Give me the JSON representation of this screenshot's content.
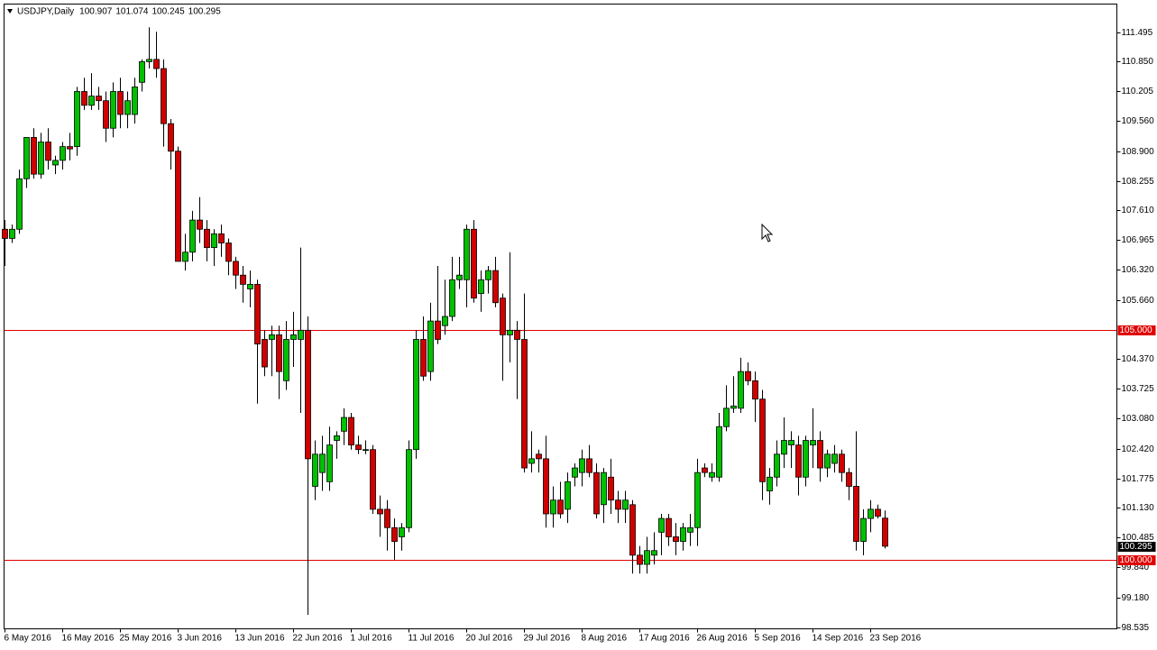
{
  "chart_data": {
    "type": "candlestick",
    "symbol": "USDJPY,Daily",
    "categories": [
      "6 May 2016",
      null,
      null,
      null,
      null,
      null,
      null,
      null,
      "16 May 2016",
      null,
      null,
      null,
      null,
      null,
      null,
      null,
      "25 May 2016",
      null,
      null,
      null,
      null,
      null,
      null,
      null,
      "3 Jun 2016",
      null,
      null,
      null,
      null,
      null,
      null,
      null,
      "13 Jun 2016",
      null,
      null,
      null,
      null,
      null,
      null,
      null,
      "22 Jun 2016",
      null,
      null,
      null,
      null,
      null,
      null,
      null,
      "1 Jul 2016",
      null,
      null,
      null,
      null,
      null,
      null,
      null,
      "11 Jul 2016",
      null,
      null,
      null,
      null,
      null,
      null,
      null,
      "20 Jul 2016",
      null,
      null,
      null,
      null,
      null,
      null,
      null,
      "29 Jul 2016",
      null,
      null,
      null,
      null,
      null,
      null,
      null,
      "8 Aug 2016",
      null,
      null,
      null,
      null,
      null,
      null,
      null,
      "17 Aug 2016",
      null,
      null,
      null,
      null,
      null,
      null,
      null,
      "26 Aug 2016",
      null,
      null,
      null,
      null,
      null,
      null,
      null,
      "5 Sep 2016",
      null,
      null,
      null,
      null,
      null,
      null,
      null,
      "14 Sep 2016",
      null,
      null,
      null,
      null,
      null,
      null,
      null,
      "23 Sep 2016",
      null,
      null
    ],
    "open": [
      107.2,
      107.0,
      107.2,
      108.3,
      109.2,
      108.4,
      109.1,
      108.6,
      108.7,
      109.0,
      109.0,
      110.2,
      109.9,
      110.1,
      110.0,
      109.4,
      110.2,
      109.7,
      109.7,
      110.4,
      110.85,
      110.9,
      110.7,
      109.5,
      108.9,
      106.5,
      106.7,
      107.4,
      107.2,
      106.8,
      107.1,
      106.9,
      106.5,
      106.2,
      105.9,
      106.0,
      104.8,
      104.8,
      104.9,
      103.9,
      104.8,
      104.8,
      105.0,
      101.6,
      101.9,
      101.7,
      102.6,
      102.8,
      103.1,
      102.5,
      102.4,
      102.4,
      101.1,
      101.1,
      100.7,
      100.5,
      100.7,
      102.4,
      104.8,
      104.1,
      105.2,
      105.1,
      105.3,
      106.1,
      106.1,
      107.2,
      105.8,
      106.1,
      106.3,
      105.7,
      104.9,
      105.0,
      104.8,
      102.1,
      102.3,
      102.2,
      101.0,
      101.3,
      101.1,
      101.8,
      101.9,
      102.2,
      101.9,
      101.2,
      101.8,
      101.3,
      101.1,
      101.2,
      100.1,
      99.9,
      100.1,
      100.6,
      100.9,
      100.5,
      100.4,
      100.6,
      100.7,
      102.0,
      101.8,
      101.8,
      102.9,
      103.3,
      103.3,
      104.1,
      103.9,
      103.5,
      101.5,
      101.8,
      102.3,
      102.5,
      102.5,
      101.8,
      102.5,
      102.6,
      102.0,
      102.1,
      102.3,
      101.9,
      101.6,
      100.4,
      100.9,
      101.1,
      100.907
    ],
    "high": [
      107.4,
      107.3,
      108.5,
      109.2,
      109.4,
      109.3,
      109.4,
      108.8,
      109.1,
      109.3,
      110.3,
      110.5,
      110.6,
      110.3,
      110.2,
      110.4,
      110.5,
      110.2,
      110.5,
      110.9,
      111.6,
      111.5,
      110.9,
      109.6,
      109.0,
      107.1,
      107.6,
      107.9,
      107.4,
      107.2,
      107.3,
      107.0,
      106.6,
      106.4,
      106.3,
      106.1,
      105.0,
      105.1,
      105.1,
      105.2,
      105.4,
      106.8,
      105.3,
      102.6,
      102.7,
      102.9,
      102.8,
      103.3,
      103.2,
      102.7,
      102.6,
      102.5,
      101.4,
      101.3,
      100.9,
      100.8,
      102.6,
      105.0,
      105.3,
      105.6,
      106.4,
      106.1,
      106.6,
      106.6,
      107.3,
      107.4,
      106.3,
      106.4,
      106.6,
      105.8,
      106.7,
      105.2,
      105.8,
      102.8,
      102.4,
      102.7,
      101.6,
      101.7,
      101.9,
      102.1,
      102.4,
      102.5,
      102.1,
      102.0,
      102.2,
      101.5,
      101.5,
      101.3,
      100.3,
      100.5,
      100.6,
      101.0,
      101.0,
      100.8,
      100.8,
      101.0,
      102.2,
      102.1,
      102.1,
      103.2,
      103.8,
      104.0,
      104.4,
      104.3,
      104.1,
      103.7,
      102.0,
      102.6,
      103.1,
      102.8,
      102.7,
      102.7,
      103.3,
      102.8,
      102.4,
      102.5,
      102.4,
      102.0,
      102.8,
      101.1,
      101.3,
      101.2,
      101.074
    ],
    "low": [
      106.4,
      106.9,
      107.1,
      108.1,
      108.3,
      108.3,
      108.5,
      108.4,
      108.5,
      108.7,
      108.8,
      109.8,
      109.8,
      109.8,
      109.1,
      109.2,
      109.4,
      109.4,
      109.5,
      110.2,
      110.7,
      110.5,
      109.0,
      108.5,
      106.5,
      106.3,
      106.5,
      106.9,
      106.5,
      106.4,
      106.6,
      106.2,
      105.9,
      105.6,
      105.5,
      103.4,
      104.0,
      104.0,
      103.5,
      103.7,
      104.2,
      103.2,
      98.8,
      101.3,
      101.5,
      101.5,
      102.2,
      102.5,
      102.4,
      102.3,
      102.3,
      101.0,
      100.5,
      100.2,
      100.0,
      100.2,
      100.6,
      102.2,
      103.9,
      103.9,
      104.7,
      104.9,
      105.2,
      105.9,
      105.5,
      105.6,
      105.4,
      105.8,
      105.5,
      103.9,
      104.3,
      103.5,
      101.9,
      101.9,
      101.9,
      100.7,
      100.7,
      100.9,
      100.8,
      101.6,
      101.6,
      101.8,
      100.9,
      100.8,
      101.0,
      100.8,
      100.8,
      99.7,
      99.7,
      99.7,
      99.9,
      100.1,
      100.3,
      100.1,
      100.2,
      100.3,
      100.3,
      101.8,
      101.7,
      101.7,
      102.8,
      103.2,
      103.2,
      103.8,
      103.0,
      101.3,
      101.2,
      101.6,
      102.0,
      102.0,
      101.4,
      101.6,
      102.0,
      101.7,
      101.8,
      101.9,
      101.7,
      101.3,
      100.2,
      100.1,
      100.6,
      100.9,
      100.245
    ],
    "close": [
      107.0,
      107.2,
      108.3,
      109.2,
      108.4,
      109.1,
      108.7,
      108.7,
      109.0,
      108.95,
      110.2,
      109.9,
      110.1,
      110.0,
      109.4,
      110.2,
      109.7,
      110.0,
      110.3,
      110.85,
      110.9,
      110.7,
      109.5,
      108.9,
      106.5,
      106.7,
      107.4,
      107.2,
      106.8,
      107.1,
      106.9,
      106.5,
      106.2,
      106.0,
      106.0,
      104.7,
      104.2,
      104.9,
      104.1,
      104.8,
      104.9,
      105.0,
      102.2,
      102.3,
      102.3,
      102.5,
      102.7,
      103.1,
      102.5,
      102.4,
      102.4,
      101.1,
      101.0,
      100.7,
      100.4,
      100.7,
      102.4,
      104.8,
      104.0,
      105.2,
      104.8,
      105.3,
      106.1,
      106.2,
      107.2,
      105.7,
      106.1,
      106.3,
      105.6,
      104.9,
      105.0,
      104.8,
      102.0,
      102.2,
      102.2,
      101.0,
      101.3,
      101.0,
      101.7,
      102.0,
      102.2,
      101.9,
      101.0,
      101.9,
      101.3,
      101.1,
      101.3,
      100.1,
      99.9,
      100.2,
      100.2,
      100.9,
      100.5,
      100.4,
      100.7,
      100.7,
      101.9,
      101.9,
      101.9,
      102.9,
      103.3,
      103.35,
      104.1,
      103.9,
      103.5,
      101.7,
      101.8,
      102.3,
      102.6,
      102.6,
      101.8,
      102.6,
      102.6,
      102.0,
      102.3,
      102.3,
      101.9,
      101.6,
      100.4,
      100.9,
      101.1,
      100.95,
      100.295
    ],
    "up_color": "#00c000",
    "down_color": "#d00000",
    "ylim": [
      98.496,
      112.105
    ],
    "yticks": [
      111.495,
      {
        "value": 110.85,
        "label": "110.850"
      },
      110.205,
      {
        "value": 109.56,
        "label": "109.560"
      },
      {
        "value": 108.9,
        "label": "108.900"
      },
      108.255,
      {
        "value": 107.61,
        "label": "107.610"
      },
      106.965,
      {
        "value": 106.32,
        "label": "106.320"
      },
      {
        "value": 105.66,
        "label": "105.660"
      },
      {
        "value": 104.37,
        "label": "104.370"
      },
      103.725,
      {
        "value": 103.08,
        "label": "103.080"
      },
      {
        "value": 102.42,
        "label": "102.420"
      },
      101.775,
      {
        "value": 101.13,
        "label": "101.130"
      },
      100.485,
      {
        "value": 99.84,
        "label": "99.840"
      },
      {
        "value": 99.18,
        "label": "99.180"
      },
      98.535
    ],
    "hlines": [
      {
        "value": 105,
        "label": "105.000"
      },
      {
        "value": 100,
        "label": "100.000"
      }
    ],
    "hline_color": "#e00000"
  }
}
